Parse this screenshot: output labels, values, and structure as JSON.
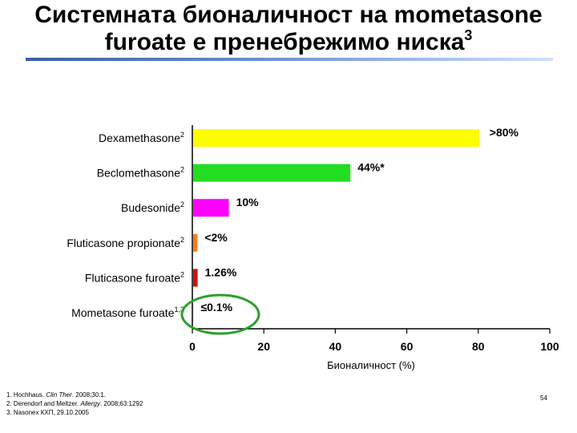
{
  "slide": {
    "title_line1": "Системната бионаличност на mometasone",
    "title_line2": "furoate е пренебрежимо ниска",
    "title_sup": "3",
    "page_number": "54",
    "footnotes": [
      {
        "pre": "1. Hochhaus. ",
        "em": "Clin Ther",
        "post": ". 2008;30:1."
      },
      {
        "pre": "2. Derendorf and Meltzer. ",
        "em": "Allergy",
        "post": ". 2008;63:1292"
      },
      {
        "pre": "3. Nasonex КХП, 29.10.2005",
        "em": "",
        "post": ""
      }
    ]
  },
  "chart_data": {
    "type": "bar",
    "orientation": "horizontal",
    "categories": [
      {
        "name": "Dexamethasone",
        "sup": "2"
      },
      {
        "name": "Beclomethasone",
        "sup": "2"
      },
      {
        "name": "Budesonide",
        "sup": "2"
      },
      {
        "name": "Fluticasone propionate",
        "sup": "2"
      },
      {
        "name": "Fluticasone furoate",
        "sup": "2"
      },
      {
        "name": "Mometasone furoate",
        "sup": "1,3"
      }
    ],
    "values": [
      80,
      44,
      10,
      1.2,
      1.26,
      0.1
    ],
    "data_labels": [
      ">80%",
      "44%*",
      "10%",
      "<2%",
      "1.26%",
      "≤0.1%"
    ],
    "colors": [
      "#ffff00",
      "#22dd22",
      "#ff00ff",
      "#ff7a1a",
      "#cc1111",
      "#cccccc"
    ],
    "xlabel": "Бионаличност (%)",
    "xlim": [
      0,
      100
    ],
    "xticks": [
      0,
      20,
      40,
      60,
      80,
      100
    ],
    "highlight": {
      "category": "Mometasone furoate",
      "color": "#2aa02a"
    },
    "grid": false
  }
}
